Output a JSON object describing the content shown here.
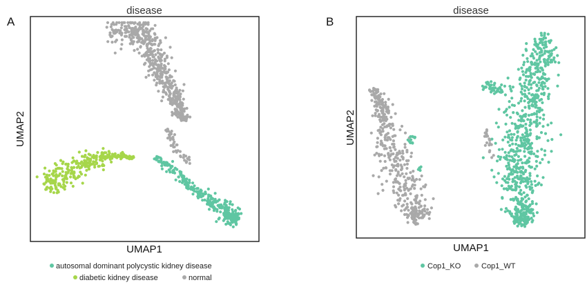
{
  "figure": {
    "panel_a_letter": "A",
    "panel_b_letter": "B"
  },
  "colors": {
    "adpkd": "#5fc6a2",
    "dkd": "#a6d64a",
    "normal": "#a9a9a9",
    "cop1_ko": "#5fc6a2",
    "cop1_wt": "#a9a9a9"
  },
  "chart_data": [
    {
      "type": "scatter",
      "panel": "A",
      "title": "disease",
      "xlabel": "UMAP1",
      "ylabel": "UMAP2",
      "grid": false,
      "legend_placement": "bottom",
      "legend": [
        {
          "name": "autosomal dominant polycystic kidney disease",
          "color": "#5fc6a2"
        },
        {
          "name": "diabetic kidney disease",
          "color": "#a6d64a"
        },
        {
          "name": "normal",
          "color": "#a9a9a9"
        }
      ],
      "clusters": [
        {
          "group": "normal",
          "color": "#a9a9a9",
          "n": 560,
          "seed": 11,
          "path": [
            [
              0.34,
              0.05
            ],
            [
              0.45,
              0.04
            ],
            [
              0.52,
              0.09
            ],
            [
              0.55,
              0.2
            ],
            [
              0.6,
              0.3
            ],
            [
              0.65,
              0.38
            ],
            [
              0.67,
              0.46
            ]
          ],
          "width": [
            0.05,
            0.06,
            0.06,
            0.055,
            0.045,
            0.03,
            0.02
          ]
        },
        {
          "group": "normal",
          "color": "#a9a9a9",
          "n": 45,
          "seed": 12,
          "path": [
            [
              0.6,
              0.5
            ],
            [
              0.62,
              0.56
            ],
            [
              0.66,
              0.62
            ],
            [
              0.7,
              0.66
            ]
          ],
          "width": [
            0.012,
            0.015,
            0.018,
            0.015
          ]
        },
        {
          "group": "adpkd",
          "color": "#5fc6a2",
          "n": 300,
          "seed": 21,
          "path": [
            [
              0.55,
              0.63
            ],
            [
              0.62,
              0.68
            ],
            [
              0.7,
              0.76
            ],
            [
              0.78,
              0.82
            ],
            [
              0.85,
              0.87
            ],
            [
              0.89,
              0.9
            ],
            [
              0.91,
              0.91
            ]
          ],
          "width": [
            0.012,
            0.018,
            0.02,
            0.025,
            0.035,
            0.04,
            0.03
          ]
        },
        {
          "group": "dkd",
          "color": "#a6d64a",
          "n": 300,
          "seed": 31,
          "path": [
            [
              0.07,
              0.77
            ],
            [
              0.12,
              0.72
            ],
            [
              0.2,
              0.67
            ],
            [
              0.28,
              0.64
            ],
            [
              0.36,
              0.62
            ],
            [
              0.45,
              0.63
            ]
          ],
          "width": [
            0.035,
            0.06,
            0.055,
            0.035,
            0.015,
            0.008
          ]
        }
      ]
    },
    {
      "type": "scatter",
      "panel": "B",
      "title": "disease",
      "xlabel": "UMAP1",
      "ylabel": "UMAP2",
      "grid": false,
      "legend_placement": "bottom",
      "legend": [
        {
          "name": "Cop1_KO",
          "color": "#5fc6a2"
        },
        {
          "name": "Cop1_WT",
          "color": "#a9a9a9"
        }
      ],
      "clusters": [
        {
          "group": "Cop1_WT",
          "color": "#a9a9a9",
          "n": 420,
          "seed": 41,
          "path": [
            [
              0.07,
              0.32
            ],
            [
              0.11,
              0.45
            ],
            [
              0.15,
              0.6
            ],
            [
              0.2,
              0.75
            ],
            [
              0.25,
              0.87
            ],
            [
              0.29,
              0.92
            ]
          ],
          "width": [
            0.02,
            0.05,
            0.075,
            0.085,
            0.07,
            0.05
          ]
        },
        {
          "group": "Cop1_KO",
          "color": "#5fc6a2",
          "n": 12,
          "seed": 42,
          "path": [
            [
              0.23,
              0.57
            ],
            [
              0.25,
              0.54
            ]
          ],
          "width": [
            0.012,
            0.012
          ]
        },
        {
          "group": "Cop1_KO",
          "color": "#5fc6a2",
          "n": 5,
          "seed": 43,
          "path": [
            [
              0.27,
              0.68
            ],
            [
              0.28,
              0.7
            ]
          ],
          "width": [
            0.01,
            0.01
          ]
        },
        {
          "group": "Cop1_KO",
          "color": "#5fc6a2",
          "n": 760,
          "seed": 51,
          "path": [
            [
              0.83,
              0.08
            ],
            [
              0.8,
              0.22
            ],
            [
              0.76,
              0.38
            ],
            [
              0.72,
              0.55
            ],
            [
              0.7,
              0.7
            ],
            [
              0.72,
              0.85
            ],
            [
              0.73,
              0.95
            ]
          ],
          "width": [
            0.04,
            0.07,
            0.09,
            0.1,
            0.09,
            0.07,
            0.03
          ]
        },
        {
          "group": "Cop1_KO",
          "color": "#5fc6a2",
          "n": 45,
          "seed": 52,
          "path": [
            [
              0.56,
              0.3
            ],
            [
              0.6,
              0.32
            ],
            [
              0.64,
              0.33
            ]
          ],
          "width": [
            0.02,
            0.025,
            0.02
          ]
        },
        {
          "group": "Cop1_WT",
          "color": "#a9a9a9",
          "n": 20,
          "seed": 53,
          "path": [
            [
              0.57,
              0.5
            ],
            [
              0.58,
              0.58
            ],
            [
              0.59,
              0.65
            ]
          ],
          "width": [
            0.012,
            0.015,
            0.012
          ]
        }
      ]
    }
  ]
}
